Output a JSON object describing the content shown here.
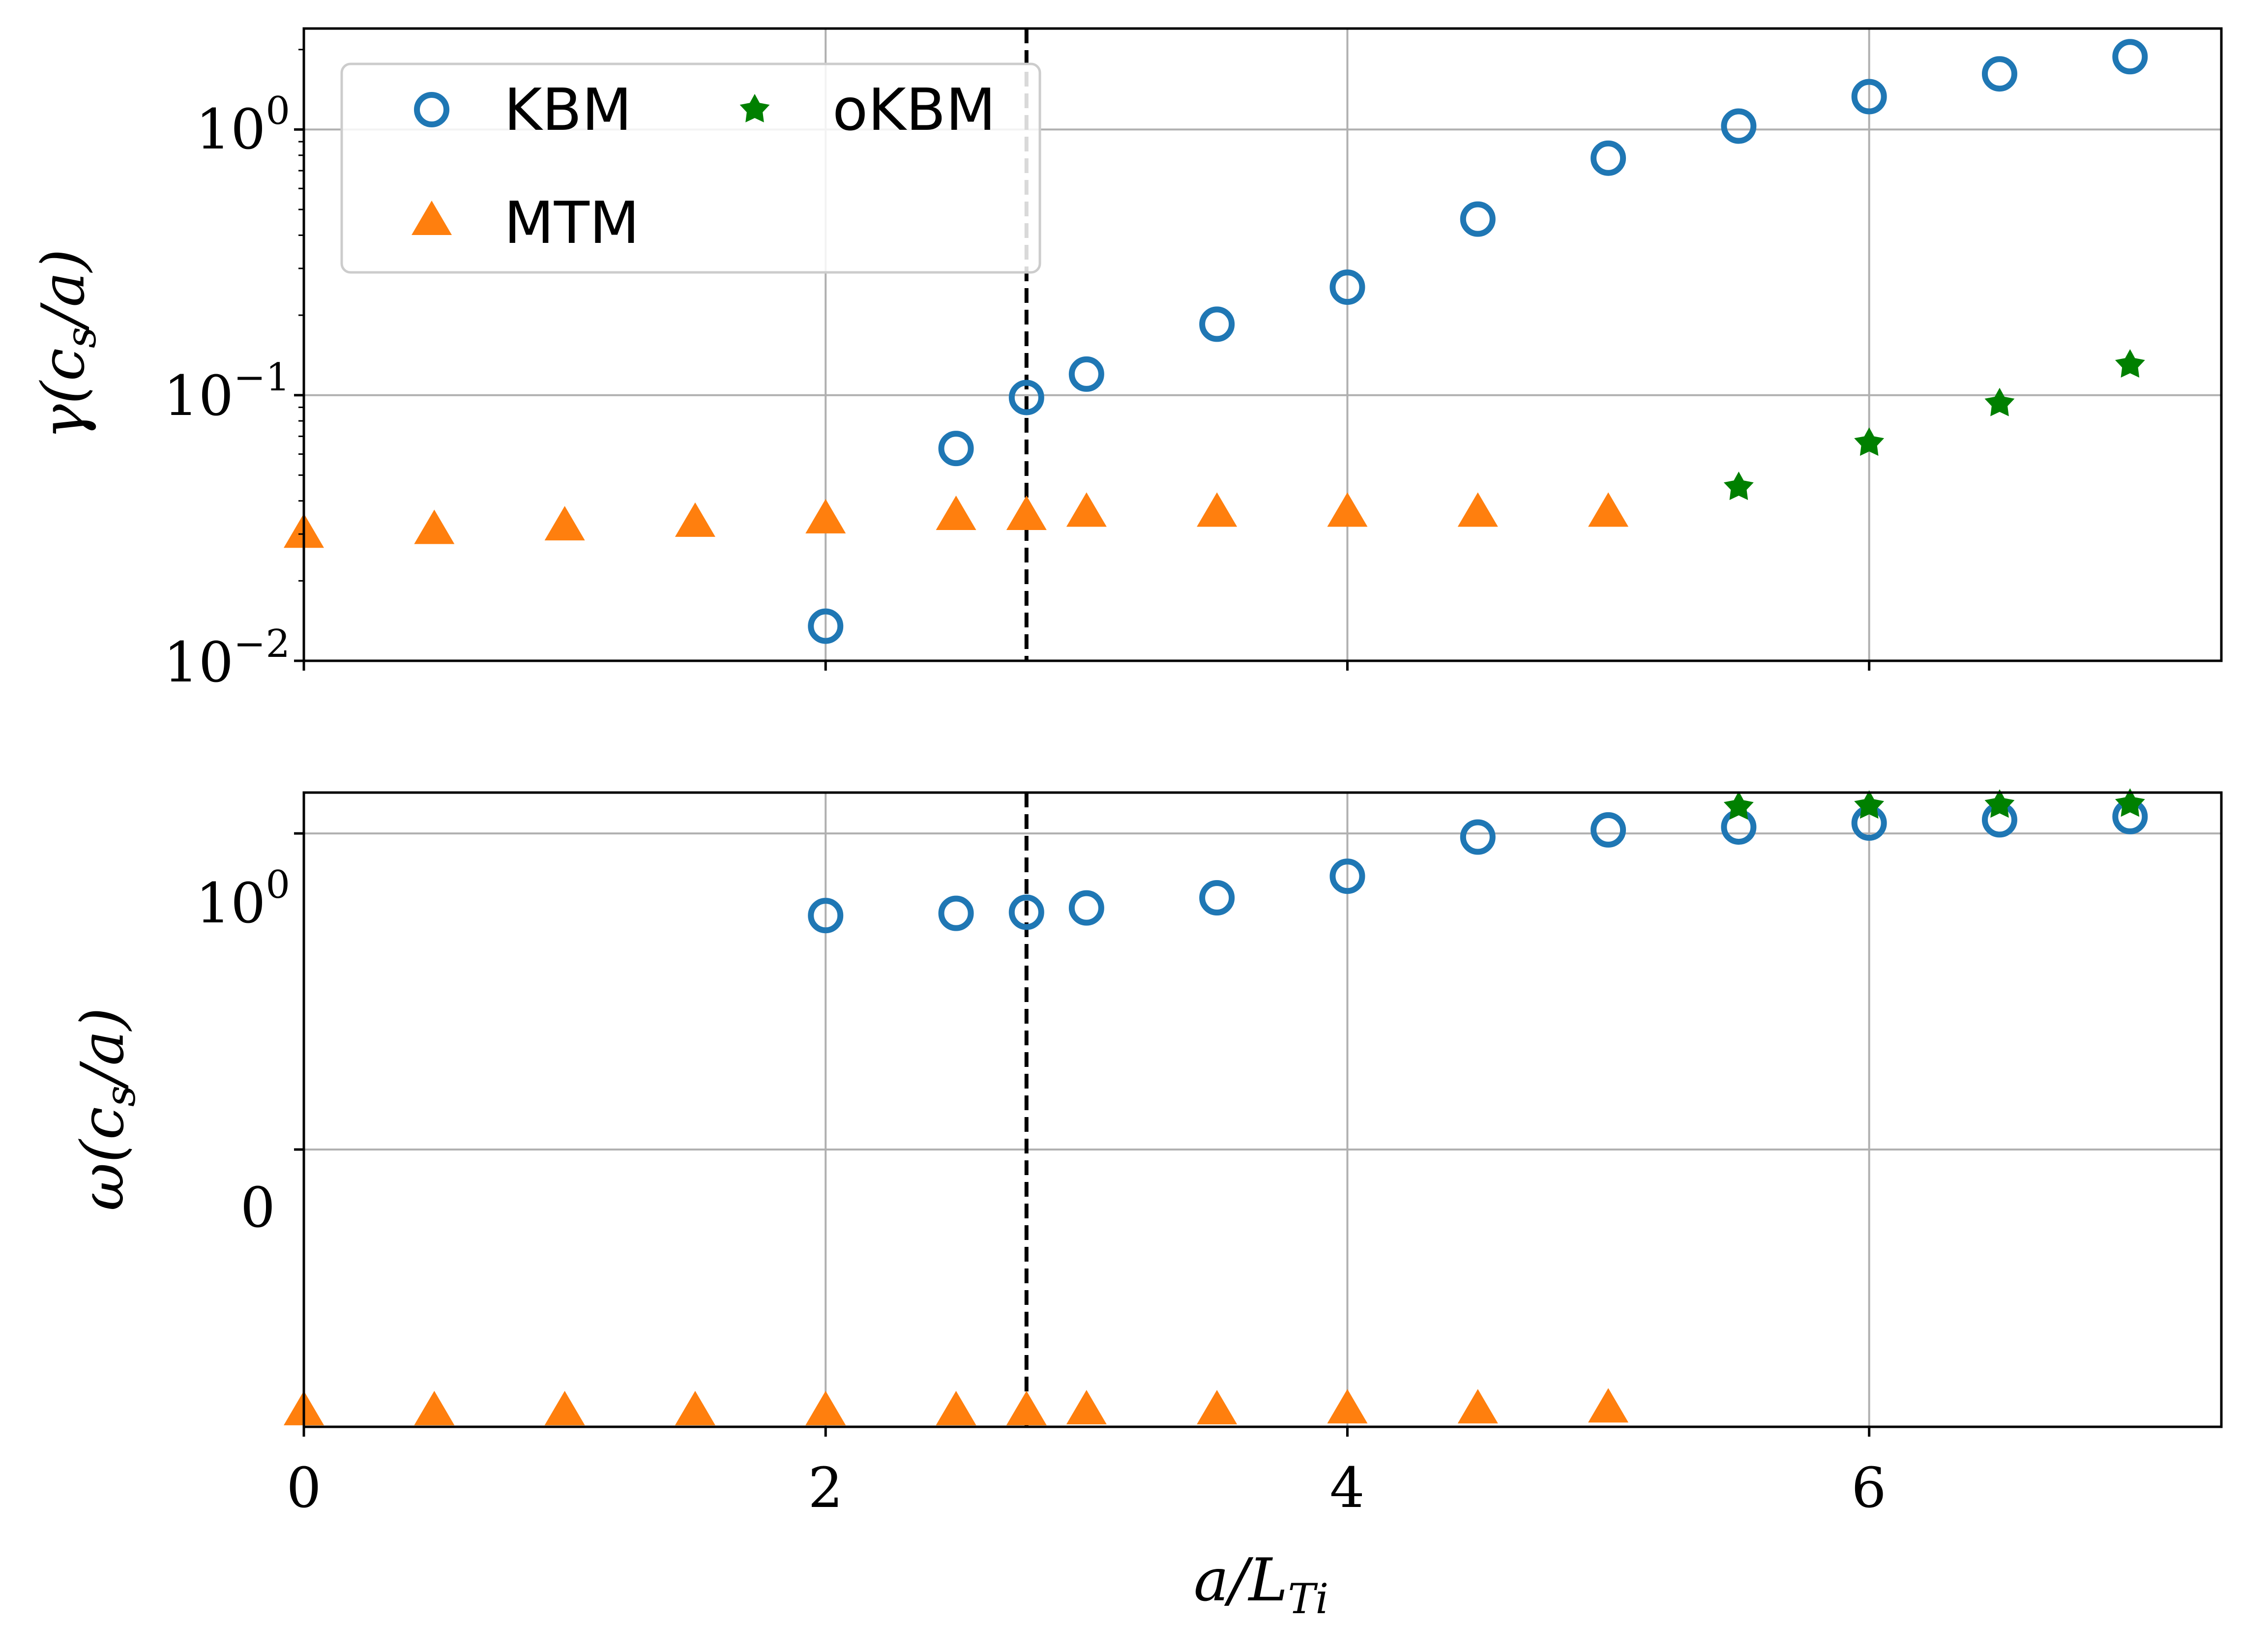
{
  "chart_data": [
    {
      "type": "scatter",
      "name": "growth-rate",
      "ylabel": "γ(c_s/a)",
      "ylabel_parts": {
        "sym": "γ",
        "open": "(c",
        "sub": "s",
        "close": "/a)"
      },
      "yscale": "log",
      "ylim": [
        0.01,
        2.4
      ],
      "xlim": [
        0,
        7.35
      ],
      "x_ticks": [
        0,
        2,
        4,
        6
      ],
      "show_x_tick_labels": false,
      "y_ticks": [
        {
          "value": 0.01,
          "base": "10",
          "exp": "−2"
        },
        {
          "value": 0.1,
          "base": "10",
          "exp": "−1"
        },
        {
          "value": 1,
          "base": "10",
          "exp": "0"
        }
      ],
      "vline": 2.77,
      "grid": true,
      "series": [
        {
          "name": "KBM",
          "marker": "circle",
          "color": "#1f77b4",
          "x": [
            2.0,
            2.5,
            2.77,
            3.0,
            3.5,
            4.0,
            4.5,
            5.0,
            5.5,
            6.0,
            6.5,
            7.0
          ],
          "y": [
            0.0135,
            0.063,
            0.098,
            0.12,
            0.185,
            0.255,
            0.46,
            0.78,
            1.03,
            1.33,
            1.62,
            1.88
          ]
        },
        {
          "name": "MTM",
          "marker": "triangle",
          "color": "#ff7f0e",
          "x": [
            0.0,
            0.5,
            1.0,
            1.5,
            2.0,
            2.5,
            2.77,
            3.0,
            3.5,
            4.0,
            4.5,
            5.0
          ],
          "y": [
            0.03,
            0.031,
            0.032,
            0.033,
            0.034,
            0.035,
            0.035,
            0.036,
            0.036,
            0.036,
            0.036,
            0.036
          ]
        },
        {
          "name": "oKBM",
          "marker": "star",
          "color": "#008000",
          "x": [
            5.5,
            6.0,
            6.5,
            7.0
          ],
          "y": [
            0.045,
            0.066,
            0.093,
            0.13
          ]
        }
      ],
      "legend": {
        "position": "upper-left",
        "columns": 2,
        "entries": [
          "KBM",
          "MTM",
          "oKBM"
        ]
      }
    },
    {
      "type": "scatter",
      "name": "frequency",
      "ylabel": "ω(c_s/a)",
      "ylabel_parts": {
        "sym": "ω",
        "open": "(c",
        "sub": "s",
        "close": "/a)"
      },
      "yscale": "symlog",
      "ylim": [
        -0.72,
        1.4
      ],
      "xlim": [
        0,
        7.35
      ],
      "x_ticks": [
        0,
        2,
        4,
        6
      ],
      "show_x_tick_labels": true,
      "y_ticks": [
        {
          "value": 0,
          "base": "0",
          "exp": ""
        },
        {
          "value": 1,
          "base": "10",
          "exp": "0"
        }
      ],
      "vline": 2.77,
      "grid": true,
      "series": [
        {
          "name": "KBM",
          "marker": "circle",
          "color": "#1f77b4",
          "x": [
            2.0,
            2.5,
            2.77,
            3.0,
            3.5,
            4.0,
            4.5,
            5.0,
            5.5,
            6.0,
            6.5,
            7.0
          ],
          "y": [
            0.49,
            0.5,
            0.505,
            0.525,
            0.575,
            0.695,
            0.97,
            1.03,
            1.055,
            1.09,
            1.12,
            1.15
          ]
        },
        {
          "name": "MTM",
          "marker": "triangle",
          "color": "#ff7f0e",
          "x": [
            0.0,
            0.5,
            1.0,
            1.5,
            2.0,
            2.5,
            2.77,
            3.0,
            3.5,
            4.0,
            4.5,
            5.0
          ],
          "y": [
            -0.63,
            -0.63,
            -0.63,
            -0.63,
            -0.63,
            -0.63,
            -0.63,
            -0.625,
            -0.625,
            -0.62,
            -0.62,
            -0.615
          ]
        },
        {
          "name": "oKBM",
          "marker": "star",
          "color": "#008000",
          "x": [
            5.5,
            6.0,
            6.5,
            7.0
          ],
          "y": [
            1.245,
            1.255,
            1.265,
            1.275
          ]
        }
      ]
    }
  ],
  "xlabel": "a/L_Ti",
  "xlabel_parts": {
    "main": "a/L",
    "sub": "Ti"
  },
  "x_tick_labels": [
    "0",
    "2",
    "4",
    "6"
  ]
}
